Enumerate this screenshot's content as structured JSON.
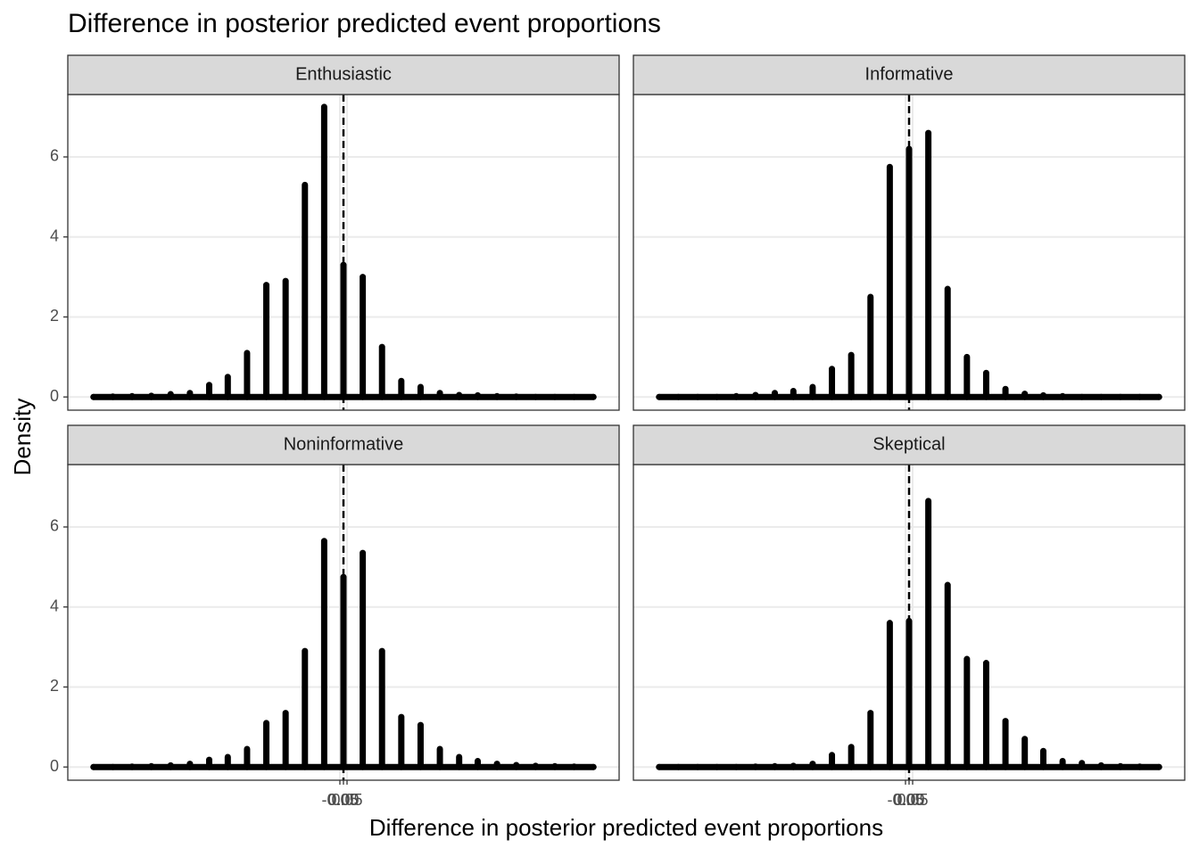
{
  "chart_data": {
    "type": "spike",
    "title": "Difference in posterior predicted event proportions",
    "x_label": "Difference in posterior predicted event proportions",
    "y_label": "Density",
    "xlim": [
      -3.86,
      3.86
    ],
    "ylim": [
      -0.33,
      7.56
    ],
    "xticks": [
      {
        "value": -0.05,
        "label": "-0.05"
      },
      {
        "value": 0,
        "label": "0.00"
      },
      {
        "value": 0.05,
        "label": "0.05"
      }
    ],
    "yticks": [
      0,
      2,
      4,
      6
    ],
    "grid": true,
    "vline": 0,
    "color": "#000000",
    "x": [
      -3.5,
      -3.23,
      -2.96,
      -2.69,
      -2.42,
      -2.15,
      -1.88,
      -1.62,
      -1.35,
      -1.08,
      -0.81,
      -0.54,
      -0.27,
      0,
      0.27,
      0.54,
      0.81,
      1.08,
      1.35,
      1.62,
      1.88,
      2.15,
      2.42,
      2.69,
      2.96,
      3.23,
      3.5
    ],
    "panels": [
      {
        "name": "Enthusiastic",
        "values": [
          0,
          0.01,
          0.02,
          0.03,
          0.07,
          0.1,
          0.3,
          0.5,
          1.1,
          2.8,
          2.9,
          5.3,
          7.25,
          3.3,
          3.0,
          1.25,
          0.4,
          0.25,
          0.1,
          0.05,
          0.04,
          0.02,
          0.01,
          0,
          0,
          0,
          0
        ]
      },
      {
        "name": "Informative",
        "values": [
          0,
          0,
          0,
          0,
          0.02,
          0.05,
          0.1,
          0.15,
          0.25,
          0.7,
          1.05,
          2.5,
          5.75,
          6.2,
          6.6,
          2.7,
          1.0,
          0.6,
          0.2,
          0.08,
          0.04,
          0.02,
          0,
          0,
          0,
          0,
          0
        ]
      },
      {
        "name": "Noninformative",
        "values": [
          0,
          0,
          0.01,
          0.02,
          0.04,
          0.08,
          0.18,
          0.25,
          0.45,
          1.1,
          1.35,
          2.9,
          5.65,
          4.75,
          5.35,
          2.9,
          1.25,
          1.05,
          0.45,
          0.25,
          0.15,
          0.08,
          0.05,
          0.03,
          0.02,
          0.01,
          0
        ]
      },
      {
        "name": "Skeptical",
        "values": [
          0,
          0,
          0,
          0,
          0,
          0.01,
          0.02,
          0.03,
          0.08,
          0.3,
          0.5,
          1.35,
          3.6,
          3.65,
          6.65,
          4.55,
          2.7,
          2.6,
          1.15,
          0.7,
          0.4,
          0.15,
          0.1,
          0.04,
          0.02,
          0.01,
          0
        ]
      }
    ]
  }
}
